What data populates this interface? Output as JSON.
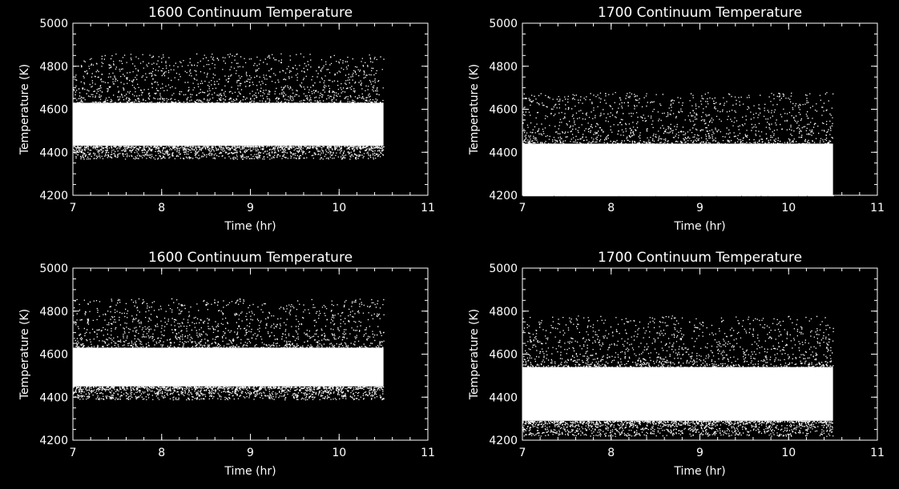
{
  "colors": {
    "background": "#000000",
    "foreground": "#ffffff"
  },
  "chart_data": [
    {
      "type": "scatter",
      "title": "1600 Continuum Temperature",
      "xlabel": "Time (hr)",
      "ylabel": "Temperature (K)",
      "xlim": [
        7,
        11
      ],
      "ylim": [
        4200,
        5000
      ],
      "xticks": [
        "7",
        "8",
        "9",
        "10",
        "11"
      ],
      "yticks": [
        "4200",
        "4400",
        "4600",
        "4800",
        "5000"
      ],
      "data_x_range": [
        7,
        10.5
      ],
      "band": {
        "core_low": 4430,
        "core_high": 4630,
        "scatter_low": 4370,
        "scatter_high": 4860
      }
    },
    {
      "type": "scatter",
      "title": "1700 Continuum Temperature",
      "xlabel": "Time (hr)",
      "ylabel": "Temperature (K)",
      "xlim": [
        7,
        11
      ],
      "ylim": [
        4200,
        5000
      ],
      "xticks": [
        "7",
        "8",
        "9",
        "10",
        "11"
      ],
      "yticks": [
        "4200",
        "4400",
        "4600",
        "4800",
        "5000"
      ],
      "data_x_range": [
        7,
        10.5
      ],
      "band": {
        "core_low": 4200,
        "core_high": 4440,
        "scatter_low": 4200,
        "scatter_high": 4680
      }
    },
    {
      "type": "scatter",
      "title": "1600 Continuum Temperature",
      "xlabel": "Time (hr)",
      "ylabel": "Temperature (K)",
      "xlim": [
        7,
        11
      ],
      "ylim": [
        4200,
        5000
      ],
      "xticks": [
        "7",
        "8",
        "9",
        "10",
        "11"
      ],
      "yticks": [
        "4200",
        "4400",
        "4600",
        "4800",
        "5000"
      ],
      "data_x_range": [
        7,
        10.5
      ],
      "band": {
        "core_low": 4450,
        "core_high": 4630,
        "scatter_low": 4390,
        "scatter_high": 4860
      }
    },
    {
      "type": "scatter",
      "title": "1700 Continuum Temperature",
      "xlabel": "Time (hr)",
      "ylabel": "Temperature (K)",
      "xlim": [
        7,
        11
      ],
      "ylim": [
        4200,
        5000
      ],
      "xticks": [
        "7",
        "8",
        "9",
        "10",
        "11"
      ],
      "yticks": [
        "4200",
        "4400",
        "4600",
        "4800",
        "5000"
      ],
      "data_x_range": [
        7,
        10.5
      ],
      "band": {
        "core_low": 4290,
        "core_high": 4540,
        "scatter_low": 4220,
        "scatter_high": 4780
      }
    }
  ]
}
